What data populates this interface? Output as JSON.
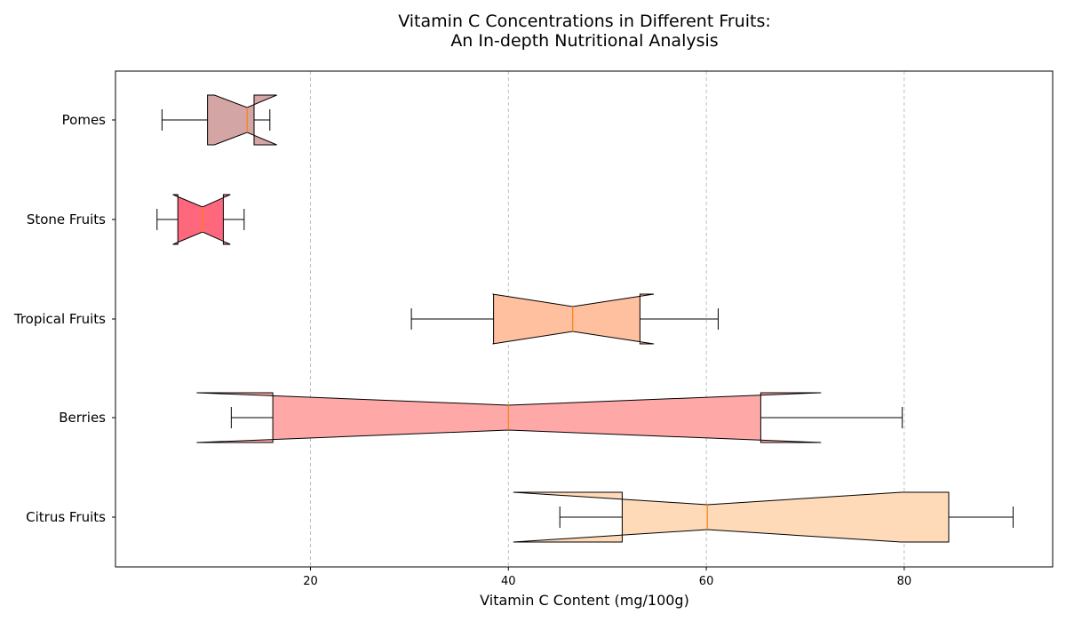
{
  "chart_data": {
    "type": "boxplot",
    "orientation": "horizontal",
    "notched": true,
    "title_lines": [
      "Vitamin C Concentrations in Different Fruits:",
      "An In-depth Nutritional Analysis"
    ],
    "xlabel": "Vitamin C Content (mg/100g)",
    "ylabel": "",
    "xlim": [
      0.3,
      95
    ],
    "xticks": [
      20,
      40,
      60,
      80
    ],
    "grid": {
      "x": true,
      "y": false,
      "style": "dashed"
    },
    "median_color": "#ff7f0e",
    "categories": [
      "Citrus Fruits",
      "Berries",
      "Tropical Fruits",
      "Stone Fruits",
      "Pomes"
    ],
    "boxes": [
      {
        "name": "Citrus Fruits",
        "color": "#ffdab9",
        "whislo": 45.2,
        "q1": 51.5,
        "med": 60.1,
        "q3": 84.5,
        "whishi": 91.0,
        "notch_lo": 40.5,
        "notch_hi": 79.7
      },
      {
        "name": "Berries",
        "color": "#ffa8a8",
        "whislo": 12.0,
        "q1": 16.2,
        "med": 40.0,
        "q3": 65.5,
        "whishi": 79.8,
        "notch_lo": 8.5,
        "notch_hi": 71.6
      },
      {
        "name": "Tropical Fruits",
        "color": "#ffc09f",
        "whislo": 30.2,
        "q1": 38.5,
        "med": 46.5,
        "q3": 53.3,
        "whishi": 61.2,
        "notch_lo": 38.4,
        "notch_hi": 54.7
      },
      {
        "name": "Stone Fruits",
        "color": "#ff677d",
        "whislo": 4.5,
        "q1": 6.6,
        "med": 9.1,
        "q3": 11.2,
        "whishi": 13.3,
        "notch_lo": 6.1,
        "notch_hi": 11.9
      },
      {
        "name": "Pomes",
        "color": "#d4a5a5",
        "whislo": 5.0,
        "q1": 9.6,
        "med": 13.6,
        "q3": 14.3,
        "whishi": 15.9,
        "notch_lo": 10.3,
        "notch_hi": 16.6
      }
    ]
  }
}
